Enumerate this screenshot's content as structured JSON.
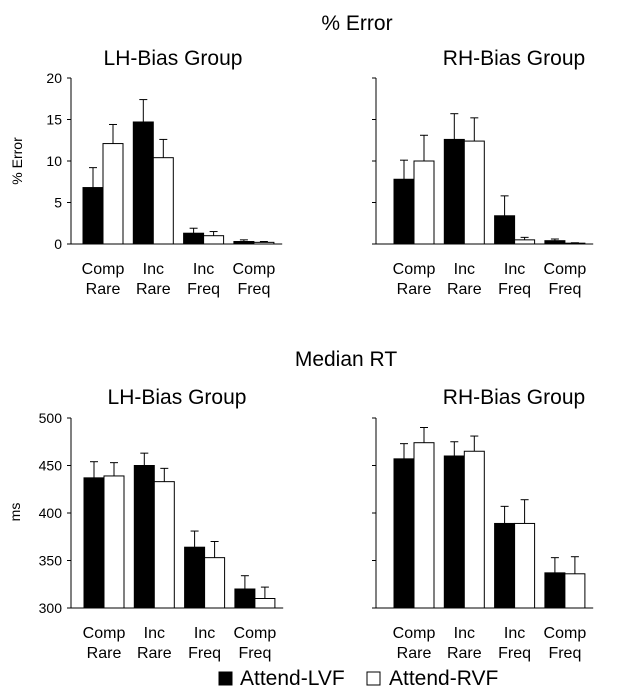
{
  "legend": {
    "attend_lvf": "Attend-LVF",
    "attend_rvf": "Attend-RVF"
  },
  "colors": {
    "attend_lvf": "#000000",
    "attend_rvf": "#ffffff"
  },
  "chart_data": [
    {
      "type": "bar",
      "section_title": "% Error",
      "title": "LH-Bias Group",
      "ylabel": "% Error",
      "ylim": [
        0,
        20
      ],
      "yticks": [
        0,
        5,
        10,
        15,
        20
      ],
      "categories": [
        [
          "Comp",
          "Rare"
        ],
        [
          "Inc",
          "Rare"
        ],
        [
          "Inc",
          "Freq"
        ],
        [
          "Comp",
          "Freq"
        ]
      ],
      "series": [
        {
          "name": "Attend-LVF",
          "values": [
            6.8,
            14.7,
            1.3,
            0.3
          ],
          "errors": [
            2.4,
            2.7,
            0.6,
            0.2
          ]
        },
        {
          "name": "Attend-RVF",
          "values": [
            12.1,
            10.4,
            1.0,
            0.2
          ],
          "errors": [
            2.3,
            2.2,
            0.5,
            0.1
          ]
        }
      ]
    },
    {
      "type": "bar",
      "section_title": "% Error",
      "title": "RH-Bias Group",
      "ylabel": "",
      "ylim": [
        0,
        20
      ],
      "yticks": [
        0,
        5,
        10,
        15,
        20
      ],
      "categories": [
        [
          "Comp",
          "Rare"
        ],
        [
          "Inc",
          "Rare"
        ],
        [
          "Inc",
          "Freq"
        ],
        [
          "Comp",
          "Freq"
        ]
      ],
      "series": [
        {
          "name": "Attend-LVF",
          "values": [
            7.8,
            12.6,
            3.4,
            0.4
          ],
          "errors": [
            2.3,
            3.1,
            2.4,
            0.2
          ]
        },
        {
          "name": "Attend-RVF",
          "values": [
            10.0,
            12.4,
            0.5,
            0.1
          ],
          "errors": [
            3.1,
            2.8,
            0.3,
            0.05
          ]
        }
      ]
    },
    {
      "type": "bar",
      "section_title": "Median RT",
      "title": "LH-Bias Group",
      "ylabel": "ms",
      "ylim": [
        300,
        500
      ],
      "yticks": [
        300,
        350,
        400,
        450,
        500
      ],
      "categories": [
        [
          "Comp",
          "Rare"
        ],
        [
          "Inc",
          "Rare"
        ],
        [
          "Inc",
          "Freq"
        ],
        [
          "Comp",
          "Freq"
        ]
      ],
      "series": [
        {
          "name": "Attend-LVF",
          "values": [
            437,
            450,
            364,
            320
          ],
          "errors": [
            17,
            13,
            17,
            14
          ]
        },
        {
          "name": "Attend-RVF",
          "values": [
            439,
            433,
            353,
            310
          ],
          "errors": [
            14,
            14,
            17,
            12
          ]
        }
      ]
    },
    {
      "type": "bar",
      "section_title": "Median RT",
      "title": "RH-Bias Group",
      "ylabel": "",
      "ylim": [
        300,
        500
      ],
      "yticks": [
        300,
        350,
        400,
        450,
        500
      ],
      "categories": [
        [
          "Comp",
          "Rare"
        ],
        [
          "Inc",
          "Rare"
        ],
        [
          "Inc",
          "Freq"
        ],
        [
          "Comp",
          "Freq"
        ]
      ],
      "series": [
        {
          "name": "Attend-LVF",
          "values": [
            457,
            460,
            389,
            337
          ],
          "errors": [
            16,
            15,
            18,
            16
          ]
        },
        {
          "name": "Attend-RVF",
          "values": [
            474,
            465,
            389,
            336
          ],
          "errors": [
            16,
            16,
            25,
            18
          ]
        }
      ]
    }
  ]
}
